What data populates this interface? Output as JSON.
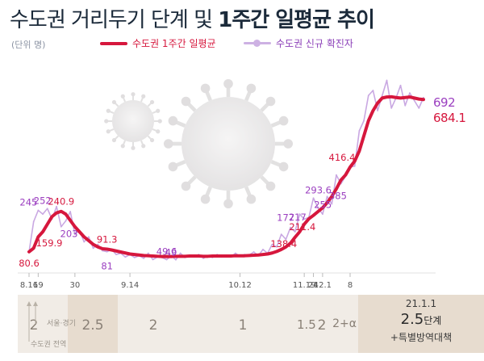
{
  "title_regular": "수도권 거리두기 단계 및 ",
  "title_bold": "1주간 일평균 추이",
  "unit": "(단위 명)",
  "legend": {
    "weekly": "수도권 1주간 일평균",
    "daily": "수도권 신규 확진자"
  },
  "colors": {
    "weekly": "#d6173d",
    "daily": "#c9a8e2",
    "daily_label": "#9b3fc0",
    "stage_bg_light": "#f1ece6",
    "stage_bg_dark": "#e7dccf"
  },
  "chart_data": {
    "type": "line",
    "x_labels": [
      "8.16",
      "19",
      "30",
      "9.14",
      "10.12",
      "11.19",
      "24",
      "12.1",
      "8"
    ],
    "series": [
      {
        "name": "수도권 1주간 일평균",
        "values": [
          80.6,
          95,
          140,
          159.9,
          190,
          220,
          235,
          240.9,
          230,
          205,
          180,
          160,
          140,
          125,
          110,
          100,
          93,
          91.3,
          88,
          84,
          80,
          76,
          72,
          70,
          68,
          66,
          65,
          64,
          63,
          62,
          62,
          62,
          63,
          63,
          63,
          64,
          64,
          64,
          63,
          63,
          64,
          64,
          64,
          64,
          64,
          65,
          65,
          65,
          66,
          67,
          68,
          70,
          72,
          76,
          82,
          90,
          100,
          115,
          138.4,
          160,
          190,
          211.4,
          225,
          240,
          255,
          275,
          300,
          330,
          365,
          385,
          416.4,
          440,
          480,
          540,
          600,
          640,
          670,
          690,
          694,
          695,
          692,
          690,
          692,
          694,
          690,
          686,
          684.1
        ],
        "labels": [
          {
            "i": 0,
            "v": "80.6"
          },
          {
            "i": 3,
            "v": "159.9"
          },
          {
            "i": 7,
            "v": "240.9"
          },
          {
            "i": 17,
            "v": "91.3"
          },
          {
            "i": 58,
            "v": "138.4"
          },
          {
            "i": 61,
            "v": "211.4"
          },
          {
            "i": 70,
            "v": "416.4"
          }
        ]
      },
      {
        "name": "수도권 신규 확진자",
        "values": [
          80.6,
          200,
          245,
          230,
          252,
          210,
          260,
          180,
          203,
          240,
          150,
          165,
          120,
          140,
          95,
          110,
          85,
          81,
          90,
          70,
          75,
          60,
          70,
          58,
          65,
          55,
          75,
          50,
          60,
          58,
          49.6,
          65,
          49,
          75,
          58,
          62,
          60,
          70,
          55,
          65,
          58,
          70,
          60,
          68,
          60,
          75,
          62,
          70,
          68,
          80,
          65,
          90,
          75,
          110,
          100,
          150,
          130,
          177,
          160,
          230,
          210,
          217,
          293.6,
          255,
          230,
          300,
          270,
          385,
          350,
          380,
          416.4,
          420,
          560,
          600,
          700,
          720,
          640,
          700,
          760,
          650,
          690,
          740,
          660,
          710,
          680,
          650,
          692
        ],
        "labels": [
          {
            "i": 2,
            "v": "245"
          },
          {
            "i": 4,
            "v": "252"
          },
          {
            "i": 8,
            "v": "203"
          },
          {
            "i": 17,
            "v": "81"
          },
          {
            "i": 30,
            "v": "49.6"
          },
          {
            "i": 32,
            "v": "49"
          },
          {
            "i": 57,
            "v": "177"
          },
          {
            "i": 61,
            "v": "217"
          },
          {
            "i": 62,
            "v": "293.6"
          },
          {
            "i": 63,
            "v": "255"
          },
          {
            "i": 67,
            "v": "385"
          }
        ]
      }
    ],
    "end_values": {
      "daily": "692",
      "weekly": "684.1"
    },
    "ylim": [
      0,
      800
    ]
  },
  "stages": [
    {
      "label": "2",
      "dark": false
    },
    {
      "label": "2.5",
      "dark": true
    },
    {
      "label": "2",
      "dark": false
    },
    {
      "label": "1",
      "dark": false
    },
    {
      "label": "1.5",
      "dark": false
    },
    {
      "label": "2",
      "dark": false
    },
    {
      "label": "2+α",
      "dark": false
    }
  ],
  "stage_final": {
    "date": "21.1.1",
    "level": "2.5",
    "level_unit": "단계",
    "extra": "+특별방역대책"
  },
  "region_labels": {
    "seoul_gyeonggi": "서울·경기",
    "capital_all": "수도권 전역"
  }
}
